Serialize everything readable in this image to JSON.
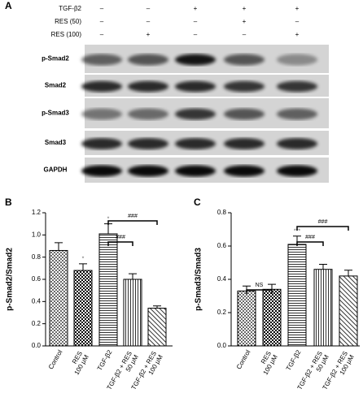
{
  "panel_a": {
    "label": "A",
    "treatments": [
      {
        "name": "TGF-β2",
        "signs": [
          "–",
          "–",
          "+",
          "+",
          "+"
        ]
      },
      {
        "name": "RES (50)",
        "signs": [
          "–",
          "–",
          "–",
          "+",
          "–"
        ]
      },
      {
        "name": "RES (100)",
        "signs": [
          "–",
          "+",
          "–",
          "–",
          "+"
        ]
      }
    ],
    "blots": [
      "p-Smad2",
      "Smad2",
      "p-Smad3",
      "Smad3",
      "GAPDH"
    ]
  },
  "chart_data": [
    {
      "type": "bar",
      "label": "B",
      "y_label": "p-Smad2/Smad2",
      "categories": [
        [
          "Control"
        ],
        [
          "RES",
          "100 μM"
        ],
        [
          "TGF-β2"
        ],
        [
          "TGF-β2 + RES",
          "50 μM"
        ],
        [
          "TGF-β2 + RES",
          "100 μM"
        ]
      ],
      "values": [
        0.86,
        0.68,
        1.01,
        0.6,
        0.34
      ],
      "errors": [
        0.07,
        0.06,
        0.09,
        0.05,
        0.02
      ],
      "color": "#000000",
      "ylim": [
        0,
        1.2
      ],
      "yticks": [
        {
          "value": 0,
          "label": "0.0"
        },
        0.2,
        0.4,
        0.6,
        0.8,
        {
          "value": 1,
          "label": "1.0"
        },
        1.2
      ],
      "annotations": [
        "*",
        "*",
        "###",
        "###"
      ]
    },
    {
      "type": "bar",
      "label": "C",
      "y_label": "p-Smad3/Smad3",
      "categories": [
        [
          "Control"
        ],
        [
          "RES",
          "100 μM"
        ],
        [
          "TGF-β2"
        ],
        [
          "TGF-β2 + RES",
          "50 μM"
        ],
        [
          "TGF-β2 + RES",
          "100 μM"
        ]
      ],
      "values": [
        0.33,
        0.34,
        0.61,
        0.46,
        0.42
      ],
      "errors": [
        0.03,
        0.03,
        0.05,
        0.03,
        0.035
      ],
      "color": "#000000",
      "ylim": [
        0,
        0.8
      ],
      "yticks": [
        {
          "value": 0,
          "label": "0.0"
        },
        0.2,
        0.4,
        0.6,
        0.8
      ],
      "annotations": [
        "NS",
        "***",
        "###",
        "###"
      ]
    }
  ]
}
